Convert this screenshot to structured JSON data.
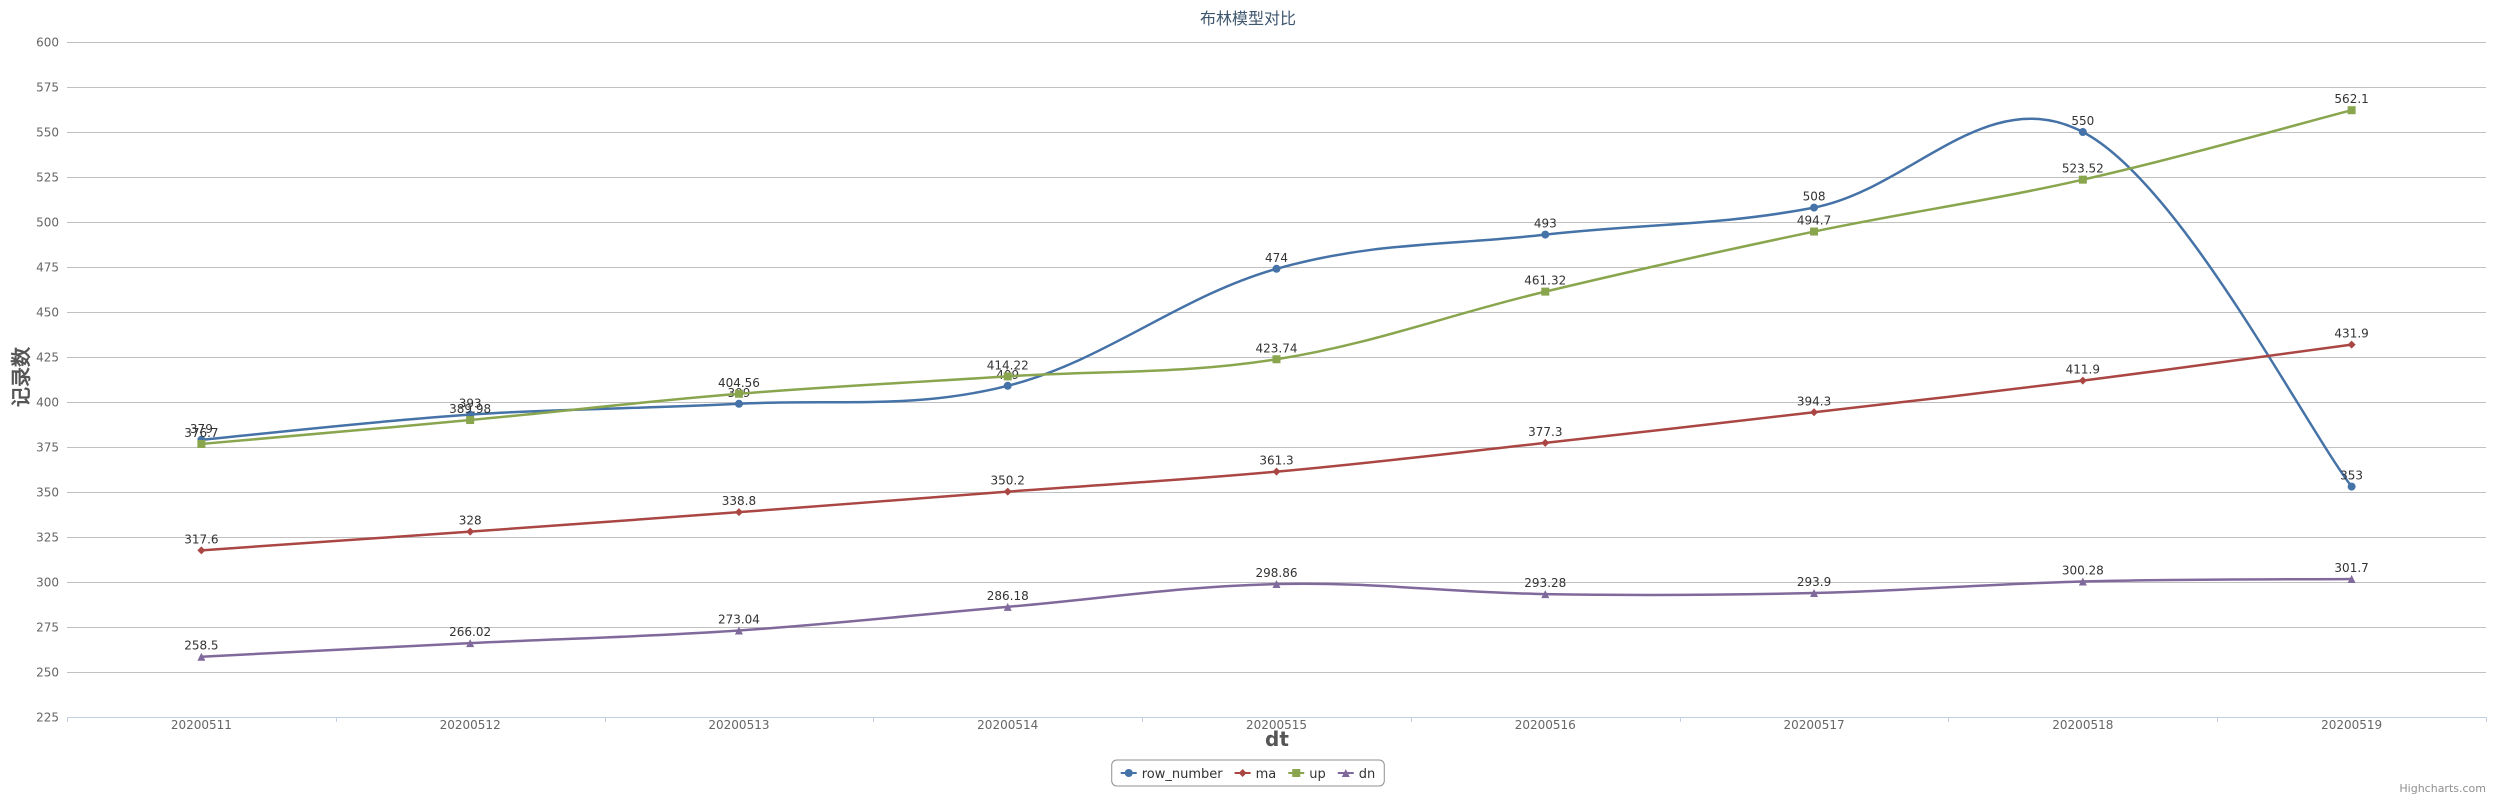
{
  "chart_data": {
    "type": "line",
    "title": "布林模型对比",
    "xlabel": "dt",
    "ylabel": "记录数",
    "categories": [
      "20200511",
      "20200512",
      "20200513",
      "20200514",
      "20200515",
      "20200516",
      "20200517",
      "20200518",
      "20200519"
    ],
    "ylim": [
      225,
      600
    ],
    "ytick_step": 25,
    "grid": true,
    "legend_position": "bottom-center",
    "series": [
      {
        "name": "row_number",
        "color": "#4572A7",
        "marker": "circle",
        "values": [
          379,
          393,
          399,
          409,
          474,
          493,
          508,
          550,
          353
        ]
      },
      {
        "name": "ma",
        "color": "#AA4643",
        "marker": "diamond",
        "values": [
          317.6,
          328,
          338.8,
          350.2,
          361.3,
          377.3,
          394.3,
          411.9,
          431.9
        ]
      },
      {
        "name": "up",
        "color": "#89A54E",
        "marker": "square",
        "values": [
          376.7,
          389.98,
          404.56,
          414.22,
          423.74,
          461.32,
          494.7,
          523.52,
          562.1
        ]
      },
      {
        "name": "dn",
        "color": "#80699B",
        "marker": "triangle",
        "values": [
          258.5,
          266.02,
          273.04,
          286.18,
          298.86,
          293.28,
          293.9,
          300.28,
          301.7
        ]
      }
    ]
  },
  "credits": "Highcharts.com"
}
